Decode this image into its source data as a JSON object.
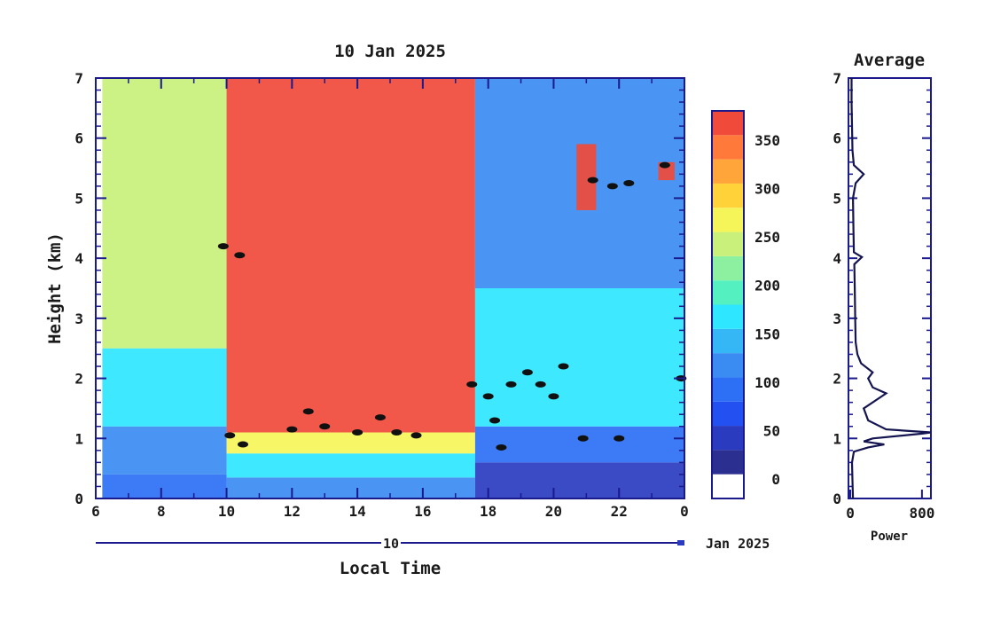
{
  "chart_data": [
    {
      "type": "heatmap",
      "title": "10 Jan 2025",
      "xlabel": "Local Time",
      "ylabel": "Height (km)",
      "x_ticks": [
        "6",
        "8",
        "10",
        "12",
        "14",
        "16",
        "18",
        "20",
        "22",
        "0"
      ],
      "y_ticks": [
        "0",
        "1",
        "2",
        "3",
        "4",
        "5",
        "6",
        "7"
      ],
      "xlim": [
        6,
        24
      ],
      "ylim": [
        0,
        7
      ],
      "date_axis": {
        "day_label": "10",
        "month_label": "Jan 2025"
      },
      "colorbar": {
        "ticks": [
          "0",
          "50",
          "100",
          "150",
          "200",
          "250",
          "300",
          "350"
        ],
        "range": [
          -20,
          380
        ],
        "colors": [
          "#ffffff",
          "#2b2f8f",
          "#2a3bc0",
          "#2350f0",
          "#2d6ff5",
          "#3b8cf2",
          "#35b6f5",
          "#2ee6ff",
          "#55f0c0",
          "#8cf0a0",
          "#c8f07a",
          "#f5f55a",
          "#ffd23a",
          "#ffa53a",
          "#ff7a3a",
          "#f04a3a"
        ]
      },
      "regions": [
        {
          "x0": 6.2,
          "x1": 10.0,
          "y0": 0.0,
          "y1": 0.4,
          "value": 80
        },
        {
          "x0": 6.2,
          "x1": 10.0,
          "y0": 0.4,
          "y1": 1.2,
          "value": 110
        },
        {
          "x0": 6.2,
          "x1": 10.0,
          "y0": 1.2,
          "y1": 2.5,
          "value": 170
        },
        {
          "x0": 6.2,
          "x1": 10.0,
          "y0": 2.5,
          "y1": 7.0,
          "value": 230
        },
        {
          "x0": 10.0,
          "x1": 17.6,
          "y0": 0.0,
          "y1": 0.35,
          "value": 110
        },
        {
          "x0": 10.0,
          "x1": 17.6,
          "y0": 0.35,
          "y1": 0.75,
          "value": 170
        },
        {
          "x0": 10.0,
          "x1": 17.6,
          "y0": 0.75,
          "y1": 1.1,
          "value": 260
        },
        {
          "x0": 10.0,
          "x1": 17.6,
          "y0": 1.1,
          "y1": 7.0,
          "value": 360
        },
        {
          "x0": 17.6,
          "x1": 24.0,
          "y0": 0.0,
          "y1": 0.6,
          "value": 40
        },
        {
          "x0": 17.6,
          "x1": 24.0,
          "y0": 0.6,
          "y1": 1.2,
          "value": 90
        },
        {
          "x0": 17.6,
          "x1": 24.0,
          "y0": 1.2,
          "y1": 3.5,
          "value": 160
        },
        {
          "x0": 17.6,
          "x1": 24.0,
          "y0": 3.5,
          "y1": 7.0,
          "value": 110
        },
        {
          "x0": 20.7,
          "x1": 21.3,
          "y0": 4.8,
          "y1": 5.9,
          "value": 360
        },
        {
          "x0": 23.2,
          "x1": 23.7,
          "y0": 5.3,
          "y1": 5.6,
          "value": 360
        }
      ],
      "cloud_boundaries": [
        [
          10.1,
          1.05
        ],
        [
          10.5,
          0.9
        ],
        [
          12.0,
          1.15
        ],
        [
          12.5,
          1.45
        ],
        [
          13.0,
          1.2
        ],
        [
          14.0,
          1.1
        ],
        [
          14.7,
          1.35
        ],
        [
          15.2,
          1.1
        ],
        [
          15.8,
          1.05
        ],
        [
          17.5,
          1.9
        ],
        [
          18.0,
          1.7
        ],
        [
          18.2,
          1.3
        ],
        [
          18.4,
          0.85
        ],
        [
          18.7,
          1.9
        ],
        [
          19.2,
          2.1
        ],
        [
          19.6,
          1.9
        ],
        [
          20.0,
          1.7
        ],
        [
          20.3,
          2.2
        ],
        [
          20.9,
          1.0
        ],
        [
          22.0,
          1.0
        ],
        [
          9.9,
          4.2
        ],
        [
          10.4,
          4.05
        ],
        [
          21.2,
          5.3
        ],
        [
          21.8,
          5.2
        ],
        [
          22.3,
          5.25
        ],
        [
          23.4,
          5.55
        ],
        [
          23.9,
          2.0
        ]
      ]
    },
    {
      "type": "line",
      "title": "Average",
      "xlabel": "Power",
      "x_ticks": [
        "0",
        "800"
      ],
      "y_ticks": [
        "0",
        "1",
        "2",
        "3",
        "4",
        "5",
        "6",
        "7"
      ],
      "xlim": [
        -20,
        900
      ],
      "ylim": [
        0,
        7
      ],
      "series": [
        {
          "points": [
            [
              30,
              0.0
            ],
            [
              25,
              0.3
            ],
            [
              20,
              0.6
            ],
            [
              40,
              0.78
            ],
            [
              200,
              0.85
            ],
            [
              380,
              0.9
            ],
            [
              150,
              0.95
            ],
            [
              250,
              1.0
            ],
            [
              800,
              1.08
            ],
            [
              900,
              1.1
            ],
            [
              400,
              1.15
            ],
            [
              200,
              1.3
            ],
            [
              150,
              1.5
            ],
            [
              400,
              1.75
            ],
            [
              250,
              1.85
            ],
            [
              200,
              2.0
            ],
            [
              250,
              2.1
            ],
            [
              120,
              2.25
            ],
            [
              80,
              2.4
            ],
            [
              60,
              2.6
            ],
            [
              55,
              3.0
            ],
            [
              50,
              3.5
            ],
            [
              45,
              3.9
            ],
            [
              130,
              4.02
            ],
            [
              40,
              4.1
            ],
            [
              35,
              4.5
            ],
            [
              30,
              5.0
            ],
            [
              60,
              5.25
            ],
            [
              150,
              5.4
            ],
            [
              40,
              5.55
            ],
            [
              25,
              5.8
            ],
            [
              20,
              6.2
            ],
            [
              15,
              6.6
            ],
            [
              15,
              7.0
            ]
          ]
        }
      ]
    }
  ]
}
